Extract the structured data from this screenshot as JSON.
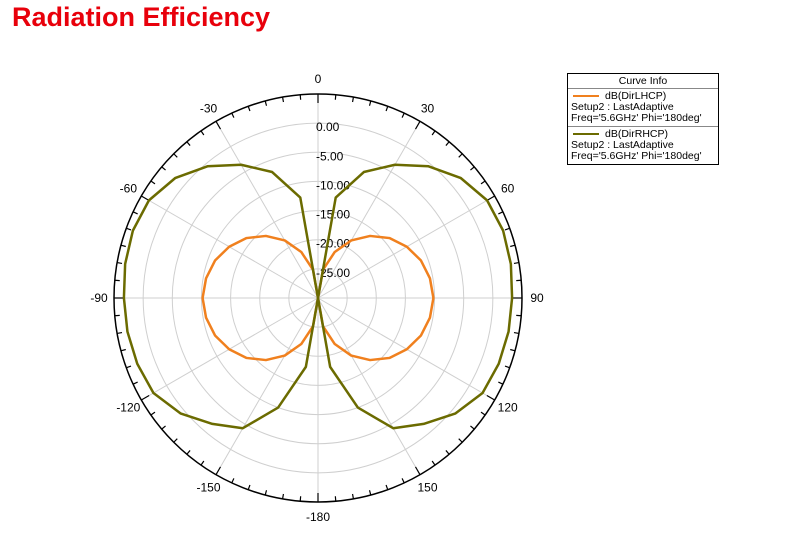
{
  "title": "Radiation Efficiency",
  "chart_data": {
    "type": "polar-line",
    "title": "Radiation Efficiency",
    "r_range": [
      -30,
      5
    ],
    "r_tick_labels": [
      "0.00",
      "-5.00",
      "-10.00",
      "-15.00",
      "-20.00",
      "-25.00"
    ],
    "r_ticks": [
      0,
      -5,
      -10,
      -15,
      -20,
      -25
    ],
    "angle_tick_labels": [
      "0",
      "30",
      "60",
      "90",
      "120",
      "150",
      "-180",
      "-150",
      "-120",
      "-90",
      "-60",
      "-30"
    ],
    "angle_ticks": [
      0,
      30,
      60,
      90,
      120,
      150,
      180,
      -150,
      -120,
      -90,
      -60,
      -30
    ],
    "grid": true,
    "legend_title": "Curve Info",
    "legend_position": "top-right",
    "theta_deg": [
      0,
      10,
      20,
      30,
      40,
      50,
      60,
      70,
      80,
      90,
      100,
      110,
      120,
      130,
      140,
      150,
      160,
      170,
      180
    ],
    "series": [
      {
        "name": "dB(DirLHCP)",
        "setup": "Setup2 : LastAdaptive",
        "params": "Freq='5.6GHz' Phi='180deg'",
        "color": "#f0801e",
        "values": [
          -30,
          -25.1,
          -21.6,
          -18.6,
          -16.1,
          -14.0,
          -12.4,
          -11.2,
          -10.5,
          -10.2,
          -10.5,
          -11.2,
          -12.4,
          -14.0,
          -16.1,
          -18.6,
          -21.6,
          -25.1,
          -30
        ]
      },
      {
        "name": "dB(DirRHCP)",
        "setup": "Setup2 : LastAdaptive",
        "params": "Freq='5.6GHz' Phi='180deg'",
        "color": "#6b6b00",
        "values": [
          -30,
          -12.5,
          -7.0,
          -3.6,
          -0.5,
          2.0,
          3.5,
          3.8,
          3.6,
          3.3,
          3.2,
          3.0,
          2.6,
          0.8,
          -1.8,
          -4.2,
          -10.0,
          -18.0,
          -30
        ]
      }
    ]
  }
}
